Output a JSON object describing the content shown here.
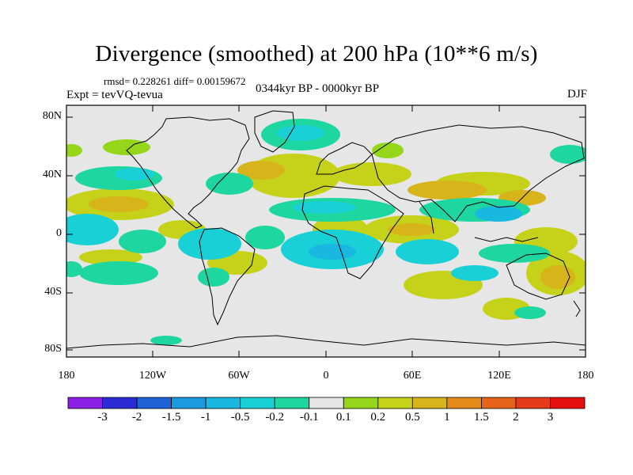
{
  "title": "Divergence (smoothed) at 200 hPa (10**6 m/s)",
  "stats": "rmsd= 0.228261 diff= 0.00159672",
  "experiment": "Expt = tevVQ-tevua",
  "period": "0344kyr BP - 0000kyr BP",
  "season": "DJF",
  "lat_ticks": [
    "80N",
    "40N",
    "0",
    "40S",
    "80S"
  ],
  "lon_ticks": [
    "180",
    "120W",
    "60W",
    "0",
    "60E",
    "120E",
    "180"
  ],
  "colorbar": {
    "labels": [
      "-3",
      "-2",
      "-1.5",
      "-1",
      "-0.5",
      "-0.2",
      "-0.1",
      "0.1",
      "0.2",
      "0.5",
      "1",
      "1.5",
      "2",
      "3"
    ],
    "colors": [
      "#8a1fe6",
      "#2b2bd6",
      "#1f62d8",
      "#1a9be0",
      "#19b8e0",
      "#19d0d6",
      "#1ed6a0",
      "#e6e6e6",
      "#96d61a",
      "#c6d21a",
      "#d6b41a",
      "#e68a1a",
      "#e6641a",
      "#e63a1a",
      "#e60f0f"
    ]
  },
  "field_colors": {
    "background": "#e6e6e6",
    "negative_weak": "#1ed6a0",
    "negative_mid": "#19d0d6",
    "negative_strong": "#19b8e0",
    "negative_max": "#1a9be0",
    "positive_weak": "#96d61a",
    "positive_mid": "#c6d21a",
    "positive_strong": "#d6b41a",
    "positive_max": "#e68a1a"
  }
}
